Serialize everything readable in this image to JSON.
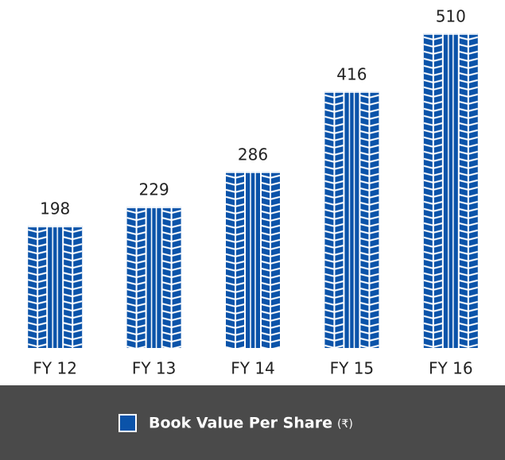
{
  "chart_data": {
    "type": "bar",
    "categories": [
      "FY 12",
      "FY 13",
      "FY 14",
      "FY 15",
      "FY 16"
    ],
    "series": [
      {
        "name": "Book Value Per Share",
        "unit": "(₹)",
        "color": "#0b53a9",
        "values": [
          198,
          229,
          286,
          416,
          510
        ]
      }
    ],
    "ylim": [
      0,
      560
    ]
  }
}
